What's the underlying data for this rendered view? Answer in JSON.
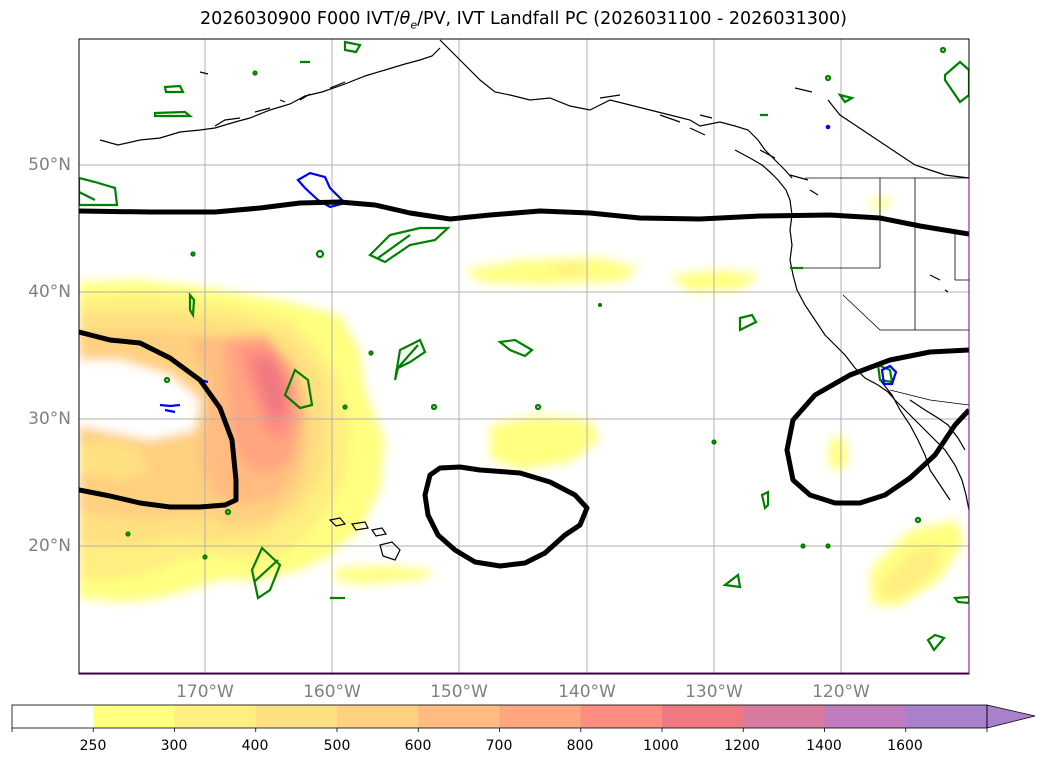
{
  "title": "2026030900 F000 IVT/θe/PV, IVT Landfall PC (2026031100 - 2026031300)",
  "title_parts": {
    "prefix": "2026030900 F000 IVT/",
    "theta": "θ",
    "theta_sub": "e",
    "suffix": "/PV, IVT Landfall PC (2026031100 - 2026031300)"
  },
  "latitude_labels": [
    {
      "lat": 50,
      "label": "50°N"
    },
    {
      "lat": 40,
      "label": "40°N"
    },
    {
      "lat": 30,
      "label": "30°N"
    },
    {
      "lat": 20,
      "label": "20°N"
    }
  ],
  "longitude_labels": [
    {
      "lon": -170,
      "label": "170°W"
    },
    {
      "lon": -160,
      "label": "160°W"
    },
    {
      "lon": -150,
      "label": "150°W"
    },
    {
      "lon": -140,
      "label": "140°W"
    },
    {
      "lon": -130,
      "label": "130°W"
    },
    {
      "lon": -120,
      "label": "120°W"
    }
  ],
  "colorbar": {
    "levels": [
      "250",
      "300",
      "400",
      "500",
      "600",
      "700",
      "800",
      "1000",
      "1200",
      "1400",
      "1600"
    ],
    "colors": [
      "#ffffff",
      "#ffff80",
      "#ffee80",
      "#ffe080",
      "#ffd080",
      "#ffbb80",
      "#ffa580",
      "#ff8c80",
      "#f07880",
      "#d87aa0",
      "#c07cc0",
      "#a880cc"
    ],
    "extend": "max"
  },
  "colors": {
    "pv_contour": "#008000",
    "theta_contour": "#0000ff",
    "landfall_pc": "#000000",
    "grid": "#b0b0b0"
  }
}
